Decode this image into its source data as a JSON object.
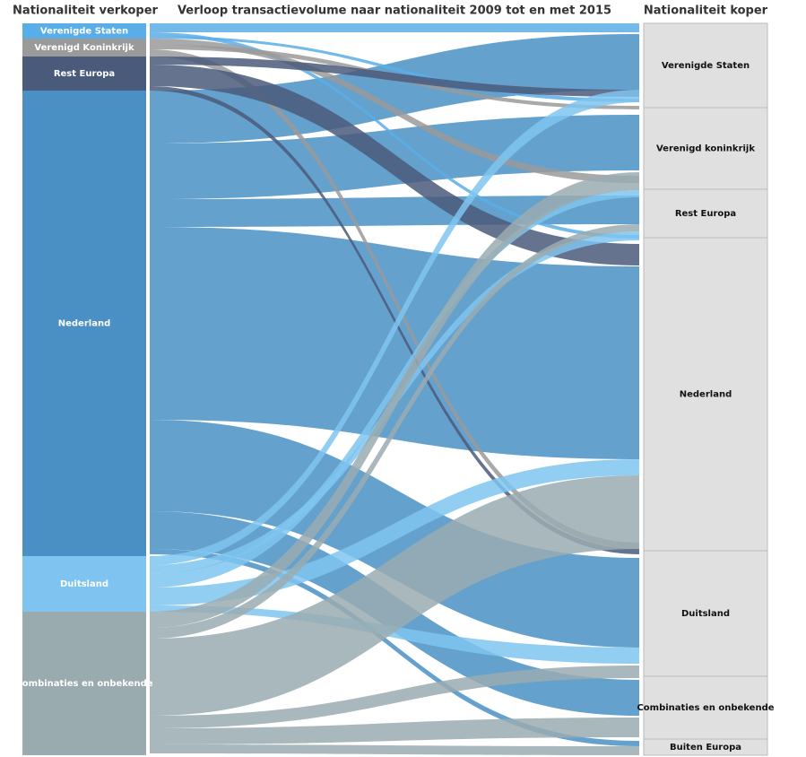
{
  "header": {
    "left": "Nationaliteit verkoper",
    "title": "Verloop transactievolume naar nationaliteit 2009 tot en met 2015",
    "right": "Nationaliteit koper"
  },
  "sellers": [
    "Verenigde Staten",
    "Verenigd Koninkrijk",
    "Rest Europa",
    "Nederland",
    "Duitsland",
    "Combinaties en onbekende"
  ],
  "buyers": [
    "Verenigde Staten",
    "Verenigd koninkrijk",
    "Rest Europa",
    "Nederland",
    "Duitsland",
    "Combinaties en onbekende",
    "Buiten Europa"
  ]
}
